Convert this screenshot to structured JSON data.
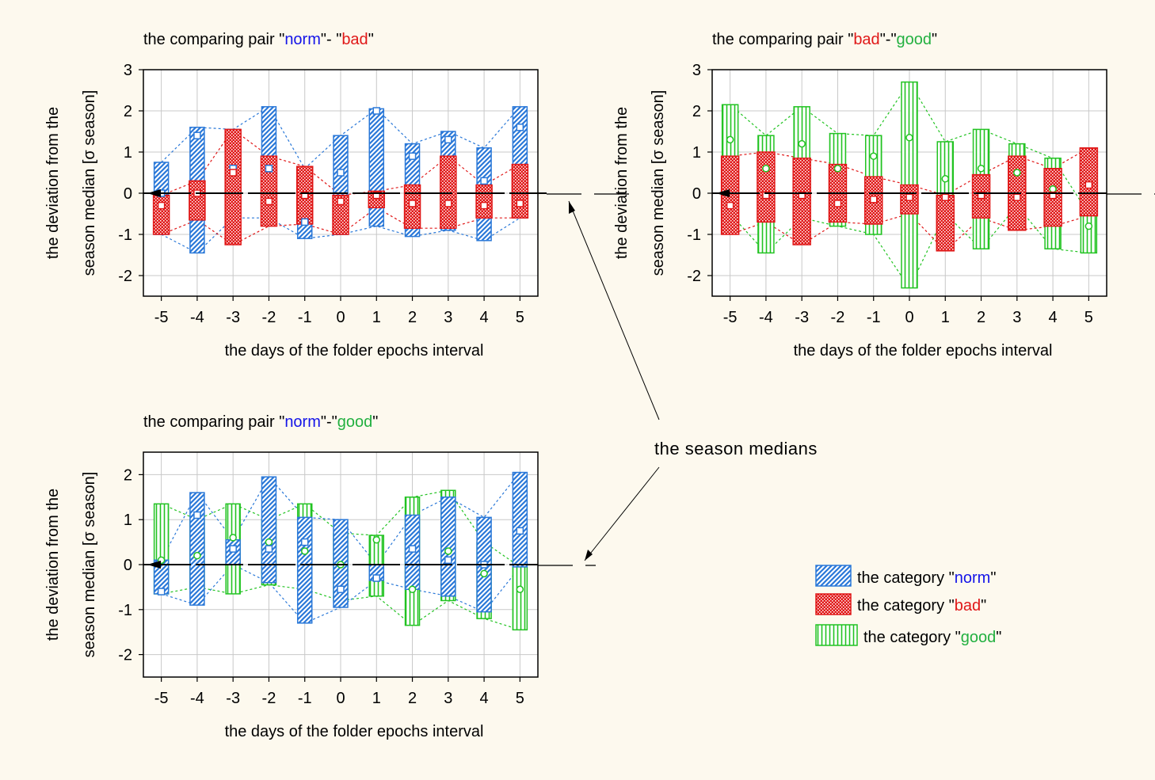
{
  "colors": {
    "norm": "#2a78d8",
    "bad": "#e01818",
    "good": "#22c322",
    "norm_text": "#1414e8",
    "bad_text": "#e01818",
    "good_text": "#22b040",
    "axis": "#000000",
    "grid": "#c8c8c8",
    "background": "#fdf9ee"
  },
  "annotation": {
    "text": "the season medians"
  },
  "legend": {
    "placement": "bottom-right",
    "items": [
      {
        "key": "norm",
        "prefix": "the category \"",
        "name": "norm",
        "suffix": "\""
      },
      {
        "key": "bad",
        "prefix": "the category \"",
        "name": "bad",
        "suffix": "\""
      },
      {
        "key": "good",
        "prefix": "the category \"",
        "name": "good",
        "suffix": "\""
      }
    ]
  },
  "chart_data": [
    {
      "type": "box",
      "title_parts": [
        {
          "text": "the comparing pair \"",
          "color": "#000000"
        },
        {
          "text": "norm",
          "color": "#1414e8"
        },
        {
          "text": "\"- \"",
          "color": "#000000"
        },
        {
          "text": "bad",
          "color": "#e01818"
        },
        {
          "text": "\"",
          "color": "#000000"
        }
      ],
      "xlabel": "the days of the folder epochs interval",
      "ylabel_line1": "the deviation from the",
      "ylabel_line2": "season median [σ season]",
      "categories": [
        "-5",
        "-4",
        "-3",
        "-2",
        "-1",
        "0",
        "1",
        "2",
        "3",
        "4",
        "5"
      ],
      "yticks": [
        "-2",
        "-1",
        "0",
        "1",
        "2",
        "3"
      ],
      "ylim": [
        -2.5,
        3
      ],
      "grid": true,
      "series": [
        {
          "key": "norm",
          "low": [
            -1.0,
            -1.45,
            -0.6,
            -0.6,
            -1.1,
            -1.0,
            -0.8,
            -1.05,
            -0.9,
            -1.15,
            -0.6
          ],
          "high": [
            0.75,
            1.6,
            1.55,
            2.1,
            0.6,
            1.4,
            2.05,
            1.2,
            1.5,
            1.1,
            2.1
          ],
          "median": [
            0,
            1.4,
            0.6,
            0.6,
            -0.7,
            0.5,
            2.0,
            0.9,
            1.3,
            0.3,
            1.6
          ]
        },
        {
          "key": "bad",
          "low": [
            -1.0,
            -0.65,
            -1.25,
            -0.8,
            -0.75,
            -1.0,
            -0.35,
            -0.85,
            -0.85,
            -0.6,
            -0.6
          ],
          "high": [
            -0.05,
            0.3,
            1.55,
            0.9,
            0.65,
            -0.05,
            0.05,
            0.2,
            0.9,
            0.2,
            0.7
          ],
          "median": [
            -0.3,
            0,
            0.5,
            -0.2,
            -0.05,
            -0.2,
            -0.05,
            -0.25,
            -0.25,
            -0.3,
            -0.25
          ]
        }
      ]
    },
    {
      "type": "box",
      "title_parts": [
        {
          "text": "the comparing pair \"",
          "color": "#000000"
        },
        {
          "text": "bad",
          "color": "#e01818"
        },
        {
          "text": "\"-\"",
          "color": "#000000"
        },
        {
          "text": "good",
          "color": "#22b040"
        },
        {
          "text": "\"",
          "color": "#000000"
        }
      ],
      "xlabel": "the days of the folder epochs interval",
      "ylabel_line1": "the deviation from the",
      "ylabel_line2": "season median [σ season]",
      "categories": [
        "-5",
        "-4",
        "-3",
        "-2",
        "-1",
        "0",
        "1",
        "2",
        "3",
        "4",
        "5"
      ],
      "yticks": [
        "-2",
        "-1",
        "0",
        "1",
        "2",
        "3"
      ],
      "ylim": [
        -2.5,
        3
      ],
      "grid": true,
      "series": [
        {
          "key": "good",
          "low": [
            -0.5,
            -1.45,
            -0.6,
            -0.8,
            -1.0,
            -2.3,
            -0.5,
            -1.35,
            -0.3,
            -1.35,
            -1.45
          ],
          "high": [
            2.15,
            1.4,
            2.1,
            1.45,
            1.4,
            2.7,
            1.25,
            1.55,
            1.2,
            0.85,
            -0.5
          ],
          "median": [
            1.3,
            0.6,
            1.2,
            0.6,
            0.9,
            1.35,
            0.35,
            0.6,
            0.5,
            0.1,
            -0.8
          ]
        },
        {
          "key": "bad",
          "low": [
            -1.0,
            -0.7,
            -1.25,
            -0.7,
            -0.75,
            -0.5,
            -1.4,
            -0.6,
            -0.9,
            -0.8,
            -0.55
          ],
          "high": [
            0.9,
            1.0,
            0.85,
            0.7,
            0.4,
            0.2,
            -0.05,
            0.45,
            0.9,
            0.6,
            1.1
          ],
          "median": [
            -0.3,
            -0.05,
            -0.05,
            -0.25,
            -0.15,
            -0.1,
            -0.1,
            -0.05,
            -0.1,
            -0.05,
            0.2
          ]
        }
      ]
    },
    {
      "type": "box",
      "title_parts": [
        {
          "text": "the comparing pair \"",
          "color": "#000000"
        },
        {
          "text": "norm",
          "color": "#1414e8"
        },
        {
          "text": "\"-\"",
          "color": "#000000"
        },
        {
          "text": "good",
          "color": "#22b040"
        },
        {
          "text": "\"",
          "color": "#000000"
        }
      ],
      "xlabel": "the days of the folder epochs interval",
      "ylabel_line1": "the deviation from the",
      "ylabel_line2": "season median [σ season]",
      "categories": [
        "-5",
        "-4",
        "-3",
        "-2",
        "-1",
        "0",
        "1",
        "2",
        "3",
        "4",
        "5"
      ],
      "yticks": [
        "-2",
        "-1",
        "0",
        "1",
        "2"
      ],
      "ylim": [
        -2.5,
        2.5
      ],
      "grid": true,
      "series": [
        {
          "key": "good",
          "low": [
            -0.65,
            -0.5,
            -0.65,
            -0.45,
            -0.55,
            -0.8,
            -0.7,
            -1.35,
            -0.8,
            -1.2,
            -1.45
          ],
          "high": [
            1.35,
            1.0,
            1.35,
            1.0,
            1.35,
            0.7,
            0.65,
            1.5,
            1.65,
            0.5,
            -0.05
          ],
          "median": [
            0.1,
            0.2,
            0.6,
            0.5,
            0.3,
            0.0,
            0.55,
            -0.55,
            0.3,
            -0.2,
            -0.55
          ]
        },
        {
          "key": "norm",
          "low": [
            -0.65,
            -0.9,
            0.0,
            -0.4,
            -1.3,
            -0.95,
            -0.35,
            -0.55,
            -0.7,
            -1.05,
            -0.05
          ],
          "high": [
            0.1,
            1.6,
            0.55,
            1.95,
            1.05,
            1.0,
            0.0,
            1.1,
            1.5,
            1.05,
            2.05
          ],
          "median": [
            -0.6,
            1.1,
            0.35,
            0.35,
            0.5,
            -0.55,
            -0.3,
            0.35,
            0.1,
            0.0,
            0.75
          ]
        }
      ]
    }
  ]
}
